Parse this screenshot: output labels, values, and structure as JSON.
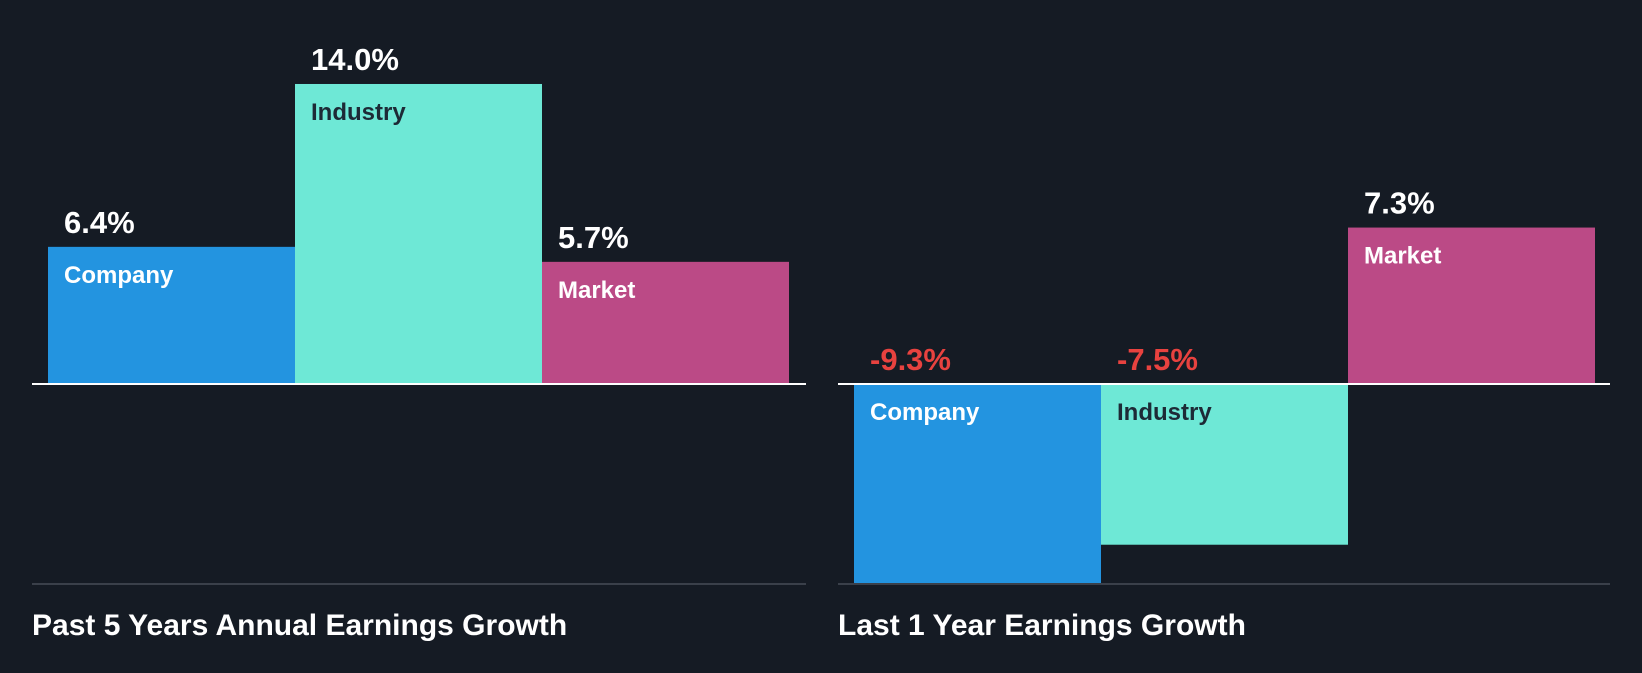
{
  "colors": {
    "background": "#151b24",
    "company": "#2394e0",
    "industry": "#6ee8d6",
    "market": "#bb4a86",
    "positive_label": "#ffffff",
    "negative_label": "#e8423f",
    "baseline": "#ffffff",
    "bottom_rule": "#3a404a",
    "title": "#ffffff"
  },
  "chart_data": [
    {
      "type": "bar",
      "title": "Past 5 Years Annual Earnings Growth",
      "categories": [
        "Company",
        "Industry",
        "Market"
      ],
      "values": [
        6.4,
        14.0,
        5.7
      ],
      "value_labels": [
        "6.4%",
        "14.0%",
        "5.7%"
      ],
      "unit": "%",
      "ylim": [
        -9.3,
        14.0
      ],
      "grid": false,
      "legend": "none"
    },
    {
      "type": "bar",
      "title": "Last 1 Year Earnings Growth",
      "categories": [
        "Company",
        "Industry",
        "Market"
      ],
      "values": [
        -9.3,
        -7.5,
        7.3
      ],
      "value_labels": [
        "-9.3%",
        "-7.5%",
        "7.3%"
      ],
      "unit": "%",
      "ylim": [
        -9.3,
        14.0
      ],
      "grid": false,
      "legend": "none"
    }
  ]
}
